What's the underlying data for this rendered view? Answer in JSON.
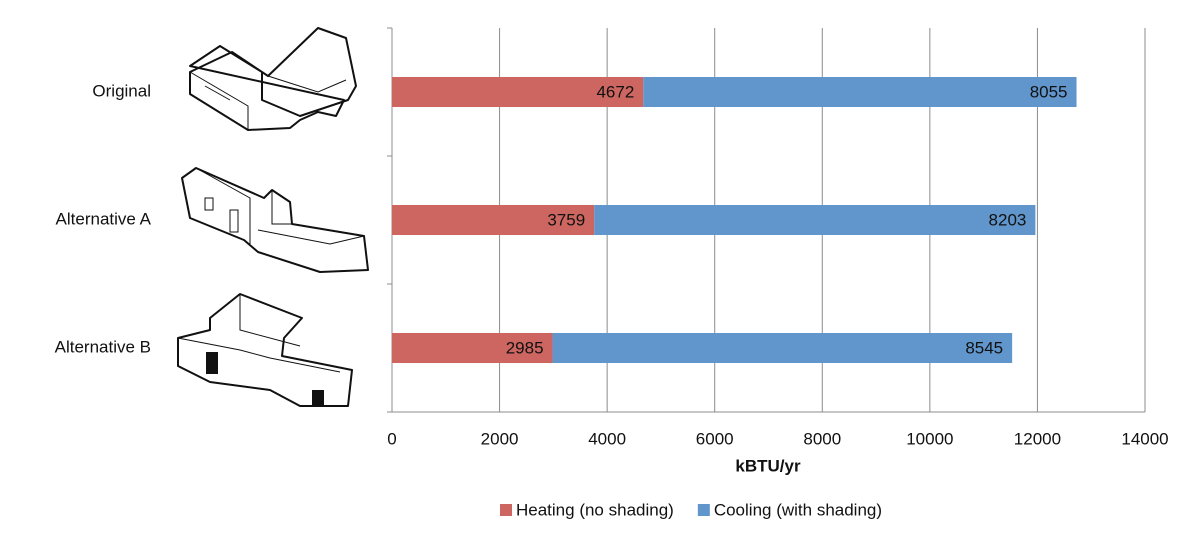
{
  "chart_data": {
    "type": "bar",
    "orientation": "horizontal",
    "stacked": true,
    "categories": [
      "Original",
      "Alternative A",
      "Alternative B"
    ],
    "series": [
      {
        "name": "Heating (no shading)",
        "color": "#cd6660",
        "values": [
          4672,
          3759,
          2985
        ]
      },
      {
        "name": "Cooling (with shading)",
        "color": "#6196cc",
        "values": [
          8055,
          8203,
          8545
        ]
      }
    ],
    "xlabel": "kBTU/yr",
    "xlim": [
      0,
      14000
    ],
    "xticks": [
      0,
      2000,
      4000,
      6000,
      8000,
      10000,
      12000,
      14000
    ],
    "grid": true,
    "data_labels": true,
    "legend": "bottom"
  }
}
